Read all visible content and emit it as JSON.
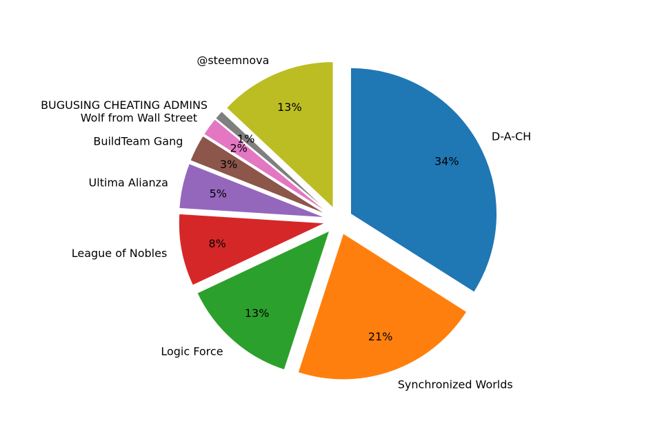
{
  "chart_data": {
    "type": "pie",
    "slices": [
      {
        "label": "D-A-CH",
        "pct_label": "34%",
        "value": 34,
        "color": "#1f77b4"
      },
      {
        "label": "Synchronized Worlds",
        "pct_label": "21%",
        "value": 21,
        "color": "#ff7f0e"
      },
      {
        "label": "Logic Force",
        "pct_label": "13%",
        "value": 13,
        "color": "#2ca02c"
      },
      {
        "label": "League of Nobles",
        "pct_label": "8%",
        "value": 8,
        "color": "#d62728"
      },
      {
        "label": "Ultima Alianza",
        "pct_label": "5%",
        "value": 5,
        "color": "#9467bd"
      },
      {
        "label": "BuildTeam Gang",
        "pct_label": "3%",
        "value": 3,
        "color": "#8c564b"
      },
      {
        "label": "Wolf from Wall Street",
        "pct_label": "2%",
        "value": 2,
        "color": "#e377c2"
      },
      {
        "label": "BUGUSING CHEATING ADMINS",
        "pct_label": "1%",
        "value": 1,
        "color": "#7f7f7f"
      },
      {
        "label": "@steemnova",
        "pct_label": "13%",
        "value": 13,
        "color": "#bcbd22"
      }
    ],
    "start_angle": "top",
    "direction": "clockwise",
    "exploded": true,
    "legend": "none"
  }
}
